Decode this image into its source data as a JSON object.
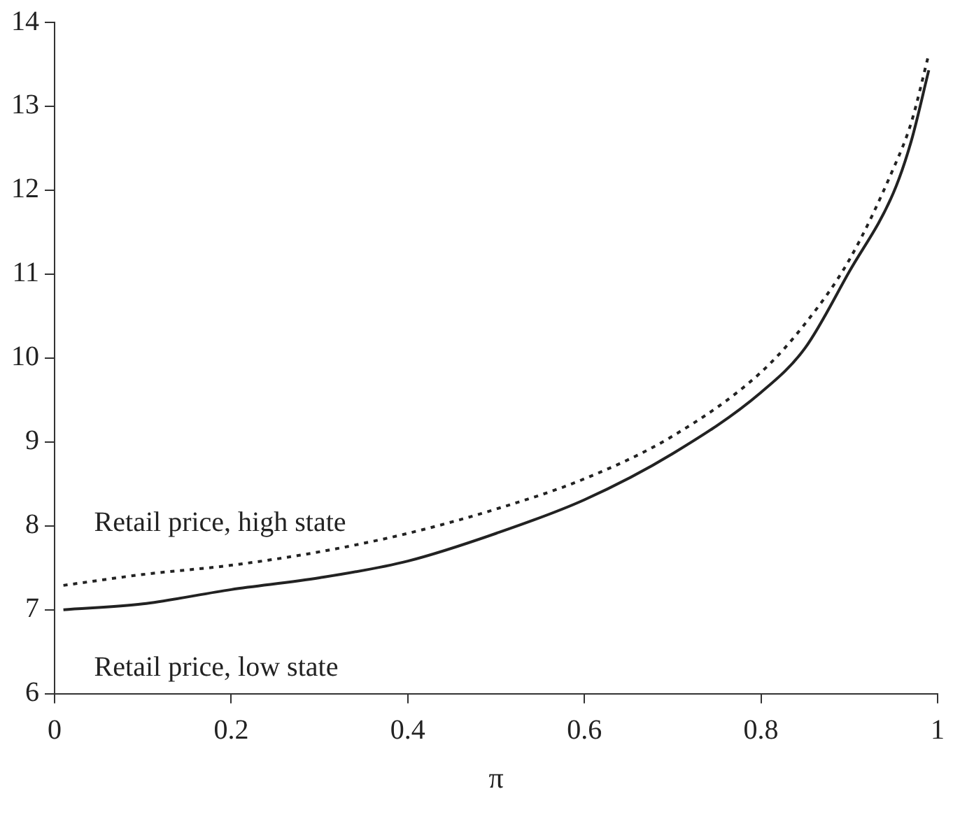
{
  "chart_data": {
    "type": "line",
    "xlabel": "π",
    "x": [
      0.01,
      0.1,
      0.2,
      0.3,
      0.4,
      0.5,
      0.6,
      0.7,
      0.8,
      0.85,
      0.9,
      0.95,
      0.97,
      0.99
    ],
    "series": [
      {
        "name": "Retail price, high state",
        "color": "#222222",
        "line_style": "dotted",
        "values": [
          7.29,
          7.42,
          7.53,
          7.69,
          7.91,
          8.2,
          8.56,
          9.07,
          9.83,
          10.41,
          11.17,
          12.26,
          12.8,
          13.62
        ]
      },
      {
        "name": "Retail price, low state",
        "color": "#222222",
        "line_style": "solid",
        "values": [
          7.0,
          7.07,
          7.24,
          7.38,
          7.58,
          7.91,
          8.31,
          8.86,
          9.59,
          10.12,
          11.03,
          11.97,
          12.58,
          13.43
        ]
      }
    ],
    "xlim": [
      0,
      1
    ],
    "xticks": [
      0,
      0.2,
      0.4,
      0.6,
      0.8,
      1
    ],
    "ylim": [
      6,
      14
    ],
    "yticks": [
      6,
      7,
      8,
      9,
      10,
      11,
      12,
      13,
      14
    ],
    "grid": false,
    "legend": false,
    "marker": "none"
  }
}
